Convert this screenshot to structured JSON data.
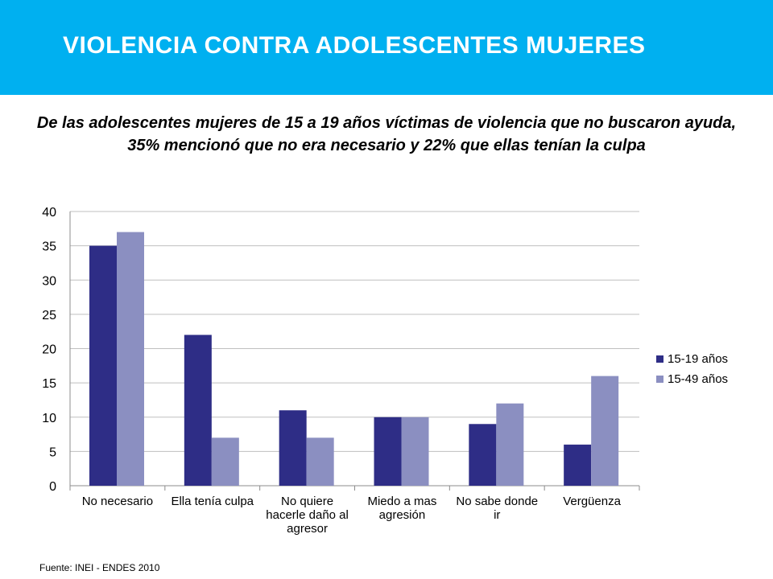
{
  "slide": {
    "title": "VIOLENCIA CONTRA ADOLESCENTES MUJERES",
    "subtitle": "De las adolescentes mujeres de 15 a 19 años víctimas de violencia  que no buscaron ayuda,  35% mencionó que no era necesario y 22% que ellas tenían la culpa",
    "source": "Fuente: INEI  - ENDES 2010",
    "header_color": "#00b0f0"
  },
  "chart_data": {
    "type": "bar",
    "title": "",
    "xlabel": "",
    "ylabel": "",
    "categories": [
      [
        "No necesario"
      ],
      [
        "Ella tenía culpa"
      ],
      [
        "No quiere",
        "hacerle daño al",
        "agresor"
      ],
      [
        "Miedo a mas",
        "agresión"
      ],
      [
        "No sabe donde",
        "ir"
      ],
      [
        "Vergüenza"
      ]
    ],
    "series": [
      {
        "name": "15-19 años",
        "color": "#2e2d86",
        "values": [
          35,
          22,
          11,
          10,
          9,
          6
        ]
      },
      {
        "name": "15-49 años",
        "color": "#8b8fc1",
        "values": [
          37,
          7,
          7,
          10,
          12,
          16
        ]
      }
    ],
    "ylim": [
      0,
      40
    ],
    "yticks": [
      0,
      5,
      10,
      15,
      20,
      25,
      30,
      35,
      40
    ],
    "grid": true,
    "legend": "right"
  }
}
